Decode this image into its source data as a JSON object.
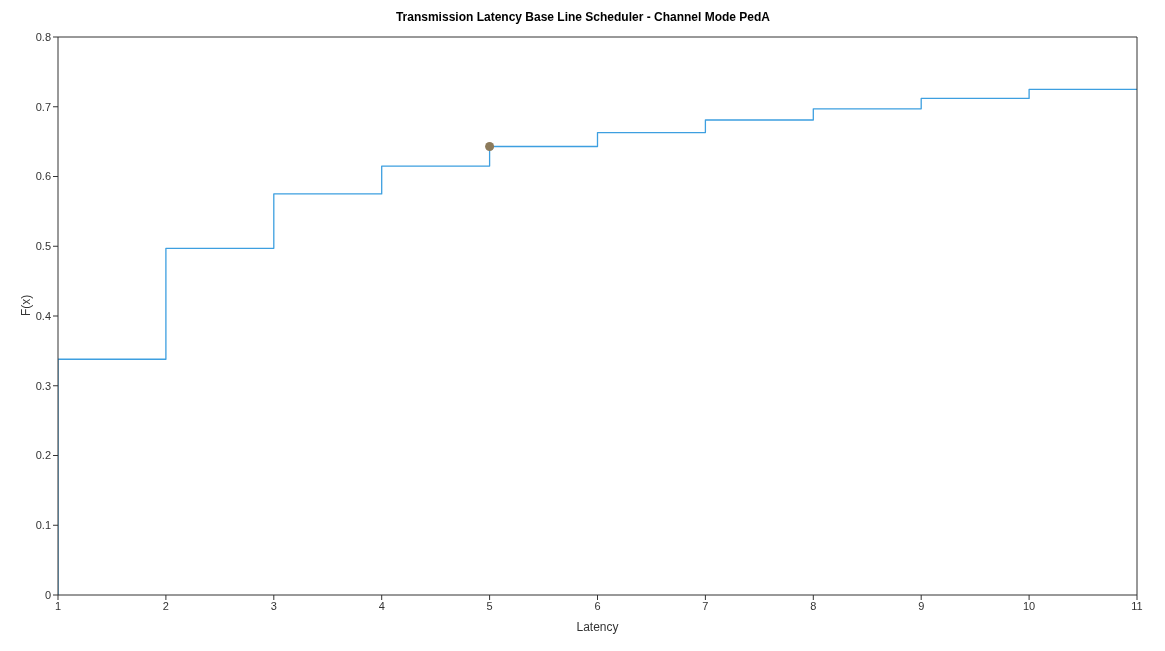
{
  "chart_data": {
    "type": "step",
    "title": "Transmission Latency Base Line Scheduler - Channel Mode PedA",
    "xlabel": "Latency",
    "ylabel": "F(x)",
    "series": [
      {
        "color": "#3d9fe0",
        "x": [
          1,
          1,
          2,
          3,
          4,
          5,
          6,
          7,
          8,
          9,
          10,
          11
        ],
        "values": [
          0,
          0.338,
          0.497,
          0.575,
          0.615,
          0.643,
          0.663,
          0.681,
          0.697,
          0.712,
          0.725,
          0.725
        ]
      },
      {
        "type": "scatter",
        "color": "#8c7a5b",
        "x": [
          5
        ],
        "values": [
          0.643
        ]
      }
    ],
    "xlim": [
      1,
      11
    ],
    "xticks": [
      1,
      2,
      3,
      4,
      5,
      6,
      7,
      8,
      9,
      10,
      11
    ],
    "ylim": [
      0,
      0.8
    ],
    "yticks": [
      0,
      0.1,
      0.2,
      0.3,
      0.4,
      0.5,
      0.6,
      0.7,
      0.8
    ],
    "grid": false,
    "legend": false
  }
}
